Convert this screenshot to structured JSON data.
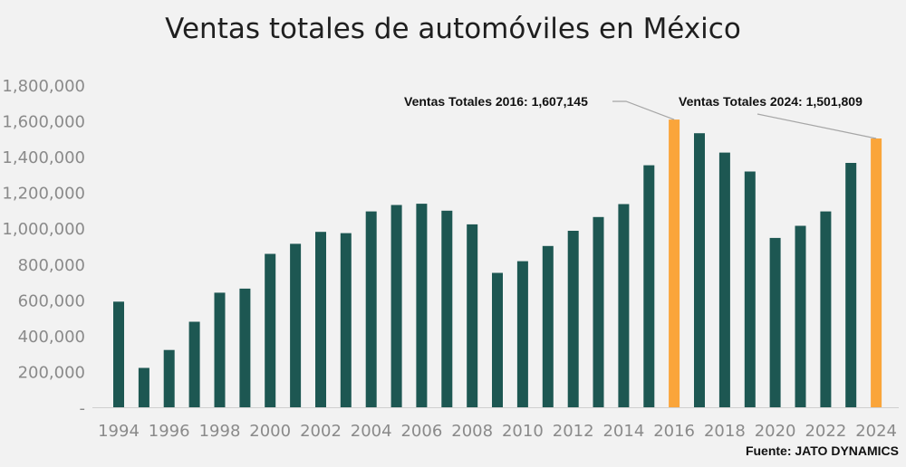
{
  "chart_data": {
    "type": "bar",
    "title": "Ventas totales de automóviles en México",
    "xlabel": "",
    "ylabel": "",
    "ylim": [
      0,
      1800000
    ],
    "yticks": [
      0,
      200000,
      400000,
      600000,
      800000,
      1000000,
      1200000,
      1400000,
      1600000,
      1800000
    ],
    "ytick_labels": [
      "-",
      "200,000",
      "400,000",
      "600,000",
      "800,000",
      "1,000,000",
      "1,200,000",
      "1,400,000",
      "1,600,000",
      "1,800,000"
    ],
    "categories": [
      "1994",
      "1995",
      "1996",
      "1997",
      "1998",
      "1999",
      "2000",
      "2001",
      "2002",
      "2003",
      "2004",
      "2005",
      "2006",
      "2007",
      "2008",
      "2009",
      "2010",
      "2011",
      "2012",
      "2013",
      "2014",
      "2015",
      "2016",
      "2017",
      "2018",
      "2019",
      "2020",
      "2021",
      "2022",
      "2023",
      "2024"
    ],
    "xtick_labels": [
      "1994",
      "1996",
      "1998",
      "2000",
      "2002",
      "2004",
      "2006",
      "2008",
      "2010",
      "2012",
      "2014",
      "2016",
      "2018",
      "2020",
      "2022",
      "2024"
    ],
    "values": [
      590000,
      220000,
      320000,
      478000,
      640000,
      663000,
      857000,
      913000,
      980000,
      973000,
      1094000,
      1130000,
      1137000,
      1098000,
      1022000,
      751000,
      816000,
      901000,
      986000,
      1063000,
      1135000,
      1352000,
      1607145,
      1531000,
      1423000,
      1317000,
      946000,
      1014000,
      1094000,
      1365000,
      1501809
    ],
    "colors": {
      "default": "#1d5752",
      "highlight": "#faa53a",
      "leader": "#a6a6a6"
    },
    "highlighted": [
      "2016",
      "2024"
    ],
    "annotations": [
      {
        "category": "2016",
        "label": "Ventas Totales 2016: 1,607,145"
      },
      {
        "category": "2024",
        "label": "Ventas Totales 2024:  1,501,809"
      }
    ],
    "source": "Fuente: JATO DYNAMICS"
  }
}
